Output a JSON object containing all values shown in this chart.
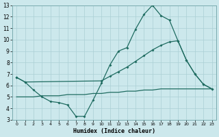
{
  "title": "",
  "xlabel": "Humidex (Indice chaleur)",
  "ylabel": "",
  "bg_color": "#cce8ec",
  "grid_color": "#aacfd4",
  "line_color": "#1e6b60",
  "xlim": [
    -0.5,
    23.5
  ],
  "ylim": [
    3,
    13
  ],
  "xticks": [
    0,
    1,
    2,
    3,
    4,
    5,
    6,
    7,
    8,
    9,
    10,
    11,
    12,
    13,
    14,
    15,
    16,
    17,
    18,
    19,
    20,
    21,
    22,
    23
  ],
  "yticks": [
    3,
    4,
    5,
    6,
    7,
    8,
    9,
    10,
    11,
    12,
    13
  ],
  "line1_x": [
    0,
    1,
    2,
    3,
    4,
    5,
    6,
    7,
    8,
    9,
    10,
    11,
    12,
    13,
    14,
    15,
    16,
    17,
    18,
    19,
    20,
    21,
    22,
    23
  ],
  "line1_y": [
    6.7,
    6.3,
    5.6,
    5.0,
    4.6,
    4.5,
    4.3,
    3.3,
    3.3,
    4.7,
    6.2,
    7.8,
    9.0,
    9.3,
    10.9,
    12.2,
    13.0,
    12.1,
    11.7,
    9.9,
    8.2,
    7.0,
    6.1,
    5.7
  ],
  "line2_x": [
    0,
    1,
    10,
    11,
    12,
    13,
    14,
    15,
    16,
    17,
    18,
    19,
    20,
    21,
    22,
    23
  ],
  "line2_y": [
    6.7,
    6.3,
    6.4,
    6.8,
    7.2,
    7.6,
    8.1,
    8.6,
    9.1,
    9.5,
    9.8,
    9.9,
    8.2,
    7.0,
    6.1,
    5.7
  ],
  "line3_x": [
    0,
    1,
    2,
    3,
    4,
    5,
    6,
    7,
    8,
    9,
    10,
    11,
    12,
    13,
    14,
    15,
    16,
    17,
    18,
    19,
    20,
    21,
    22,
    23
  ],
  "line3_y": [
    5.0,
    5.0,
    5.0,
    5.1,
    5.1,
    5.1,
    5.2,
    5.2,
    5.2,
    5.3,
    5.3,
    5.4,
    5.4,
    5.5,
    5.5,
    5.6,
    5.6,
    5.7,
    5.7,
    5.7,
    5.7,
    5.7,
    5.7,
    5.7
  ]
}
